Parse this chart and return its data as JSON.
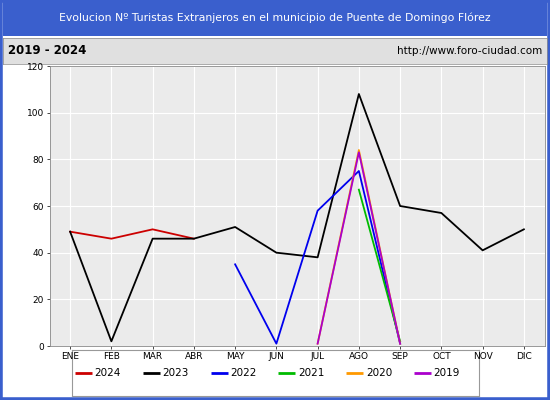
{
  "title": "Evolucion Nº Turistas Extranjeros en el municipio de Puente de Domingo Flórez",
  "subtitle_left": "2019 - 2024",
  "subtitle_right": "http://www.foro-ciudad.com",
  "months": [
    "ENE",
    "FEB",
    "MAR",
    "ABR",
    "MAY",
    "JUN",
    "JUL",
    "AGO",
    "SEP",
    "OCT",
    "NOV",
    "DIC"
  ],
  "series": {
    "2024": {
      "color": "#cc0000",
      "data": [
        49,
        46,
        50,
        46,
        null,
        null,
        null,
        null,
        null,
        null,
        null,
        null
      ]
    },
    "2023": {
      "color": "#000000",
      "data": [
        49,
        2,
        46,
        46,
        51,
        40,
        38,
        108,
        60,
        57,
        41,
        50
      ]
    },
    "2022": {
      "color": "#0000ee",
      "data": [
        null,
        null,
        null,
        null,
        35,
        1,
        58,
        75,
        1,
        null,
        null,
        null
      ]
    },
    "2021": {
      "color": "#00bb00",
      "data": [
        null,
        null,
        null,
        null,
        null,
        null,
        null,
        67,
        2,
        null,
        null,
        null
      ]
    },
    "2020": {
      "color": "#ff9900",
      "data": [
        null,
        null,
        null,
        null,
        null,
        null,
        1,
        84,
        1,
        null,
        null,
        null
      ]
    },
    "2019": {
      "color": "#aa00cc",
      "data": [
        null,
        null,
        null,
        null,
        null,
        null,
        1,
        83,
        1,
        null,
        null,
        null
      ]
    }
  },
  "ylim": [
    0,
    120
  ],
  "yticks": [
    0,
    20,
    40,
    60,
    80,
    100,
    120
  ],
  "bg_title": "#3a5fcd",
  "bg_subtitle": "#e0e0e0",
  "bg_plot": "#ebebeb",
  "bg_outer": "#ffffff",
  "border_color": "#3a5fcd",
  "grid_color": "#ffffff",
  "title_color": "#ffffff",
  "subtitle_color": "#000000",
  "legend_items": [
    [
      "2024",
      "#cc0000"
    ],
    [
      "2023",
      "#000000"
    ],
    [
      "2022",
      "#0000ee"
    ],
    [
      "2021",
      "#00bb00"
    ],
    [
      "2020",
      "#ff9900"
    ],
    [
      "2019",
      "#aa00cc"
    ]
  ]
}
